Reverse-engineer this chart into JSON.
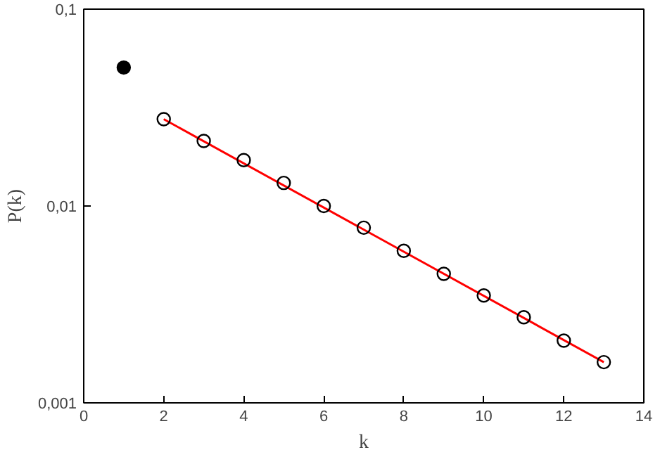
{
  "chart_data": {
    "type": "scatter",
    "xlabel": "k",
    "ylabel": "P(k)",
    "log": "y",
    "grid": false,
    "marker": "circle",
    "xlim": [
      0,
      14
    ],
    "xticks": [
      0,
      2,
      4,
      6,
      8,
      10,
      12,
      14
    ],
    "ylim": [
      0.001,
      0.1
    ],
    "yticks": [
      {
        "value": 0.001,
        "label": "0,001"
      },
      {
        "value": 0.01,
        "label": "0,01"
      },
      {
        "value": 0.1,
        "label": "0,1"
      }
    ],
    "series": [
      {
        "type": "line",
        "color": "#ff0000",
        "x": [
          2,
          13
        ],
        "values": [
          0.0276,
          0.00161
        ],
        "marker": "none"
      },
      {
        "color": "#000000",
        "x": [
          1
        ],
        "values": [
          0.0505
        ],
        "marker": "dot"
      },
      {
        "color": "#000000",
        "x": [
          2,
          3,
          4,
          5,
          6,
          7,
          8,
          9,
          10,
          11,
          12,
          13
        ],
        "values": [
          0.0276,
          0.0214,
          0.0171,
          0.0131,
          0.01,
          0.00776,
          0.00592,
          0.00452,
          0.00351,
          0.00272,
          0.00207,
          0.00161
        ]
      }
    ]
  }
}
